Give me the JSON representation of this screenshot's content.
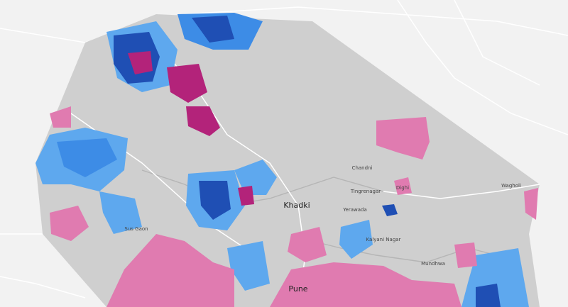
{
  "map": {
    "places": [
      "Pune",
      "Khadki",
      "Sus Gaon",
      "Wagholi",
      "Yerawada",
      "Tingrenagar",
      "Kalyani Nagar",
      "Dighi",
      "Chandni",
      "Mundhwa"
    ]
  }
}
